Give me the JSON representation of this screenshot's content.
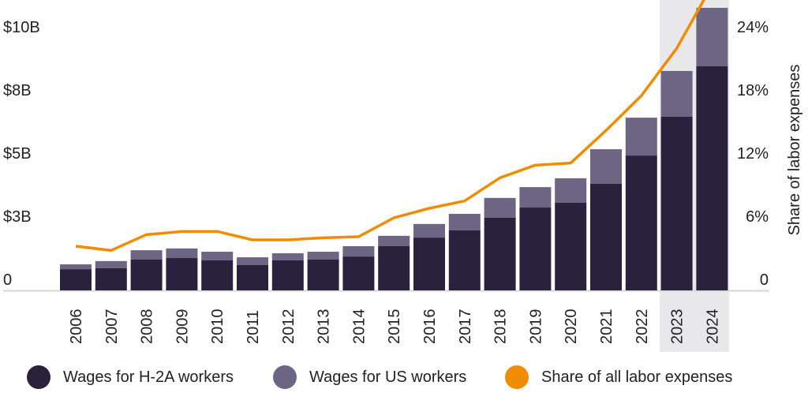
{
  "chart_data": {
    "type": "bar",
    "subtype": "stacked bar with line on secondary axis",
    "categories": [
      "2006",
      "2007",
      "2008",
      "2009",
      "2010",
      "2011",
      "2012",
      "2013",
      "2014",
      "2015",
      "2016",
      "2017",
      "2018",
      "2019",
      "2020",
      "2021",
      "2022",
      "2023",
      "2024"
    ],
    "series": [
      {
        "name": "Wages for H-2A workers",
        "kind": "bar",
        "axis": "left",
        "color": "#28223d",
        "values": [
          0.84,
          0.88,
          1.22,
          1.28,
          1.19,
          1.0,
          1.19,
          1.22,
          1.34,
          1.75,
          2.09,
          2.38,
          2.88,
          3.28,
          3.47,
          4.22,
          5.34,
          6.88,
          8.88
        ]
      },
      {
        "name": "Wages for US workers",
        "kind": "bar",
        "axis": "left",
        "color": "#6e6585",
        "values": [
          0.19,
          0.28,
          0.37,
          0.38,
          0.34,
          0.31,
          0.28,
          0.31,
          0.41,
          0.41,
          0.54,
          0.65,
          0.78,
          0.81,
          0.97,
          1.37,
          1.5,
          1.81,
          2.31
        ]
      },
      {
        "name": "Share of all labor expenses",
        "kind": "line",
        "axis": "right",
        "color": "#ef8c00",
        "values": [
          4.2,
          3.8,
          5.3,
          5.6,
          5.6,
          4.8,
          4.8,
          5.0,
          5.1,
          6.9,
          7.8,
          8.5,
          10.7,
          11.9,
          12.1,
          15.2,
          18.5,
          23.0,
          29.0
        ]
      }
    ],
    "y_left": {
      "unit": "billion USD",
      "lim": [
        0,
        10
      ],
      "ticks": [
        0,
        2.5,
        5,
        7.5,
        10
      ],
      "tick_labels": [
        "0",
        "$3B",
        "$5B",
        "$8B",
        "$10B"
      ],
      "label": ""
    },
    "y_right": {
      "unit": "percent",
      "lim": [
        0,
        24
      ],
      "ticks": [
        0,
        6,
        12,
        18,
        24
      ],
      "tick_labels": [
        "0",
        "6%",
        "12%",
        "18%",
        "24%"
      ],
      "label": "Share of labor expenses"
    },
    "highlighted_categories": [
      "2023",
      "2024"
    ],
    "highlight_color": "#e8e8ea",
    "grid": false,
    "legend_position": "bottom"
  }
}
